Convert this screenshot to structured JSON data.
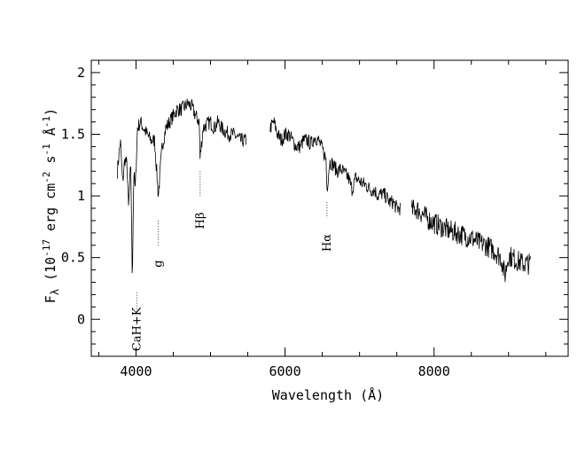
{
  "chart_data": {
    "type": "line",
    "title": "",
    "xlabel": "Wavelength (Å)",
    "ylabel": "Fλ (10-17 erg cm-2 s-1 Å-1)",
    "ylabel_parts": {
      "main": "F",
      "sub": "λ",
      "open": " (10",
      "e1": "-17",
      "erg": " erg cm",
      "e2": "-2",
      "s": " s",
      "e3": "-1",
      "ang": " Å",
      "e4": "-1",
      "close": ")"
    },
    "xlim": [
      3400,
      9800
    ],
    "ylim": [
      -0.3,
      2.1
    ],
    "x_ticks": [
      4000,
      6000,
      8000
    ],
    "x_tick_labels": [
      "4000",
      "6000",
      "8000"
    ],
    "y_ticks": [
      0,
      0.5,
      1,
      1.5,
      2
    ],
    "y_tick_labels": [
      "0",
      "0.5",
      "1",
      "1.5",
      "2"
    ],
    "grid": false,
    "legend": "none",
    "series": [
      {
        "segments": [
          {
            "x": [
              3750,
              3790,
              3820,
              3850,
              3880,
              3900,
              3930,
              3950,
              3970,
              3990,
              4020,
              4060,
              4100,
              4150,
              4200,
              4250,
              4300,
              4350,
              4400,
              4450,
              4500,
              4550,
              4600,
              4650,
              4700,
              4750,
              4800,
              4850,
              4860,
              4900,
              4950,
              5000,
              5050,
              5100,
              5150,
              5200,
              5250,
              5300,
              5350,
              5400,
              5450,
              5480
            ],
            "y": [
              1.2,
              1.45,
              1.1,
              1.3,
              1.25,
              0.9,
              1.25,
              0.3,
              1.2,
              1.05,
              1.55,
              1.6,
              1.55,
              1.5,
              1.45,
              1.45,
              1.0,
              1.4,
              1.55,
              1.6,
              1.65,
              1.7,
              1.7,
              1.72,
              1.75,
              1.72,
              1.65,
              1.6,
              1.3,
              1.55,
              1.58,
              1.6,
              1.55,
              1.6,
              1.55,
              1.52,
              1.5,
              1.5,
              1.48,
              1.45,
              1.45,
              1.45
            ]
          },
          {
            "x": [
              5800,
              5850,
              5900,
              5950,
              6000,
              6050,
              6100,
              6150,
              6200,
              6250,
              6300,
              6350,
              6400,
              6450,
              6500,
              6550,
              6563,
              6600,
              6650,
              6700,
              6750,
              6800,
              6850,
              6900,
              6950,
              7000,
              7050,
              7100,
              7150,
              7200,
              7250,
              7300,
              7350,
              7400,
              7450,
              7500,
              7550
            ],
            "y": [
              1.55,
              1.6,
              1.5,
              1.45,
              1.5,
              1.5,
              1.45,
              1.4,
              1.4,
              1.45,
              1.45,
              1.42,
              1.48,
              1.45,
              1.38,
              1.3,
              1.05,
              1.28,
              1.25,
              1.2,
              1.22,
              1.18,
              1.15,
              1.05,
              1.15,
              1.12,
              1.1,
              1.08,
              1.05,
              1.05,
              1.0,
              1.02,
              1.0,
              0.95,
              0.95,
              0.9,
              0.9
            ]
          },
          {
            "x": [
              7700,
              7750,
              7800,
              7850,
              7900,
              7950,
              8000,
              8100,
              8200,
              8300,
              8400,
              8500,
              8600,
              8700,
              8800,
              8900,
              8950,
              9000,
              9100,
              9200,
              9300
            ],
            "y": [
              0.88,
              0.9,
              0.88,
              0.85,
              0.82,
              0.8,
              0.78,
              0.75,
              0.72,
              0.7,
              0.68,
              0.66,
              0.62,
              0.6,
              0.56,
              0.5,
              0.35,
              0.52,
              0.48,
              0.45,
              0.45
            ]
          }
        ]
      }
    ],
    "annotations": [
      {
        "label": "CaH+K",
        "x": 4010,
        "y_from": 0.22,
        "y_to": 0.08,
        "text_y": -0.08
      },
      {
        "label": "g",
        "x": 4300,
        "y_from": 0.8,
        "y_to": 0.6,
        "text_y": 0.45
      },
      {
        "label": "Hβ",
        "x": 4861,
        "y_from": 1.2,
        "y_to": 1.0,
        "text_y": 0.8
      },
      {
        "label": "Hα",
        "x": 6563,
        "y_from": 0.95,
        "y_to": 0.82,
        "text_y": 0.62
      }
    ]
  }
}
